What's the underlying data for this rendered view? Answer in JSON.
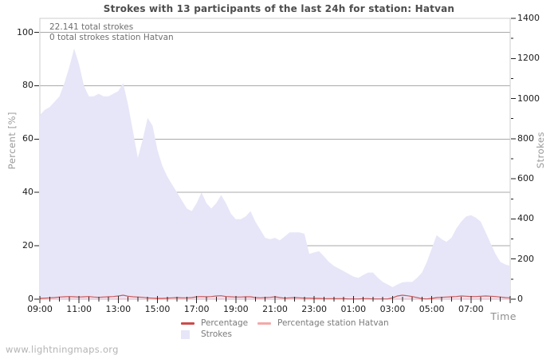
{
  "title": "Strokes with 13 participants of the last 24h for station: Hatvan",
  "watermark": "www.lightningmaps.org",
  "annotations": {
    "total_strokes": "22.141 total strokes",
    "station_total": "0 total strokes station Hatvan"
  },
  "axes": {
    "left": {
      "label": "Percent  [%]",
      "ticks": [
        0,
        20,
        40,
        60,
        80,
        100
      ],
      "range": [
        0,
        100
      ]
    },
    "right": {
      "label": "Strokes",
      "ticks": [
        0,
        200,
        400,
        600,
        800,
        1000,
        1200,
        1400
      ],
      "range": [
        0,
        1400
      ]
    },
    "x": {
      "label": "Time",
      "tick_labels": [
        "09:00",
        "11:00",
        "13:00",
        "15:00",
        "17:00",
        "19:00",
        "21:00",
        "23:00",
        "01:00",
        "03:00",
        "05:00",
        "07:00"
      ]
    }
  },
  "legend": [
    {
      "label": "Percentage",
      "type": "line",
      "color": "#cb4a4a"
    },
    {
      "label": "Percentage station Hatvan",
      "type": "line",
      "color": "#f4a9a9"
    },
    {
      "label": "Strokes",
      "type": "area",
      "color": "#e7e6f8"
    }
  ],
  "colors": {
    "grid": "#aaaaaa",
    "plot_border": "#cccccc",
    "tick": "#222222",
    "area_fill": "#e7e6f8",
    "percentage_line": "#cb5a5a",
    "station_line": "#f4a9a9"
  },
  "chart_data": {
    "type": "area",
    "x_start": "09:00",
    "x_interval_minutes": 15,
    "x_span_hours": 24,
    "grid": "on",
    "legend_position": "bottom",
    "series": [
      {
        "name": "Strokes",
        "type": "area",
        "axis": "right",
        "values": [
          918,
          944,
          958,
          984,
          1011,
          1077,
          1157,
          1250,
          1170,
          1064,
          1011,
          1011,
          1024,
          1011,
          1011,
          1024,
          1037,
          1077,
          971,
          838,
          705,
          798,
          904,
          865,
          745,
          665,
          612,
          572,
          532,
          492,
          452,
          439,
          479,
          532,
          479,
          452,
          479,
          519,
          479,
          426,
          399,
          399,
          412,
          439,
          386,
          346,
          306,
          299,
          306,
          293,
          313,
          333,
          333,
          333,
          326,
          226,
          233,
          239,
          213,
          186,
          166,
          153,
          140,
          126,
          113,
          106,
          120,
          133,
          133,
          106,
          86,
          73,
          60,
          73,
          84,
          86,
          86,
          106,
          133,
          186,
          253,
          319,
          299,
          286,
          306,
          352,
          386,
          412,
          419,
          406,
          386,
          333,
          279,
          226,
          186,
          173,
          166
        ]
      },
      {
        "name": "Percentage",
        "type": "line",
        "axis": "left",
        "values": [
          0.3,
          0.4,
          0.5,
          0.6,
          0.8,
          0.9,
          1.0,
          0.9,
          0.8,
          0.9,
          1.0,
          0.8,
          0.7,
          0.8,
          0.9,
          1.0,
          1.2,
          1.5,
          1.1,
          0.9,
          0.8,
          0.7,
          0.5,
          0.4,
          0.3,
          0.3,
          0.4,
          0.5,
          0.6,
          0.5,
          0.5,
          0.6,
          0.9,
          1.0,
          0.9,
          1.0,
          1.2,
          1.3,
          1.0,
          0.9,
          0.8,
          0.8,
          0.9,
          0.9,
          0.6,
          0.5,
          0.6,
          0.7,
          0.9,
          0.6,
          0.4,
          0.5,
          0.6,
          0.5,
          0.4,
          0.4,
          0.3,
          0.3,
          0.2,
          0.2,
          0.2,
          0.2,
          0.2,
          0.1,
          0.1,
          0.1,
          0.2,
          0.2,
          0.1,
          0.1,
          0.1,
          0.1,
          0.5,
          1.2,
          1.5,
          1.3,
          1.0,
          0.6,
          0.2,
          0.1,
          0.3,
          0.6,
          0.7,
          0.8,
          0.9,
          1.0,
          1.2,
          1.1,
          1.0,
          1.0,
          1.1,
          1.2,
          1.1,
          1.0,
          0.8,
          0.6,
          0.5
        ]
      },
      {
        "name": "Percentage station Hatvan",
        "type": "line",
        "axis": "left",
        "constant": 0
      }
    ]
  }
}
